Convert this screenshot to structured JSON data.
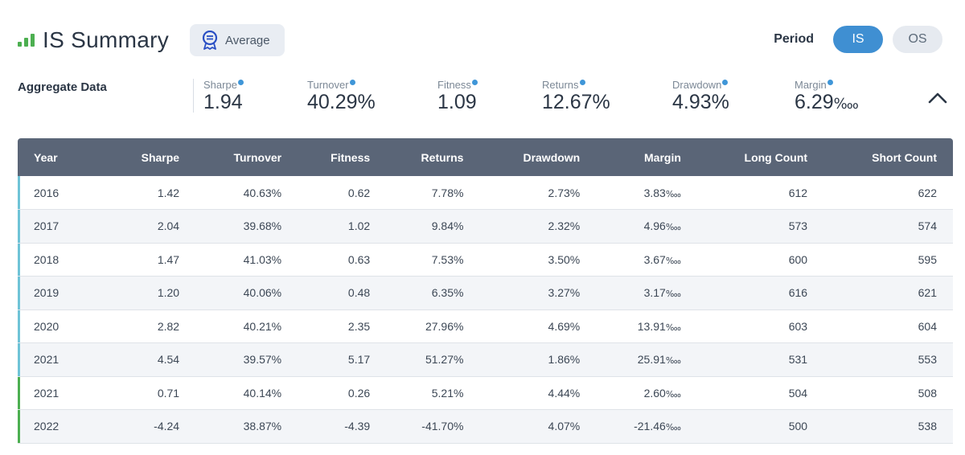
{
  "header": {
    "title": "IS Summary",
    "badge_label": "Average",
    "period_label": "Period",
    "period_options": [
      "IS",
      "OS"
    ],
    "period_selected": "IS"
  },
  "aggregate": {
    "label": "Aggregate Data",
    "stats": [
      {
        "label": "Sharpe",
        "value": "1.94"
      },
      {
        "label": "Turnover",
        "value": "40.29%"
      },
      {
        "label": "Fitness",
        "value": "1.09"
      },
      {
        "label": "Returns",
        "value": "12.67%"
      },
      {
        "label": "Drawdown",
        "value": "4.93%"
      },
      {
        "label": "Margin",
        "value": "6.29",
        "unit": "‱"
      }
    ]
  },
  "table": {
    "columns": [
      "Year",
      "Sharpe",
      "Turnover",
      "Fitness",
      "Returns",
      "Drawdown",
      "Margin",
      "Long Count",
      "Short Count"
    ],
    "rows": [
      {
        "year": "2016",
        "sharpe": "1.42",
        "turnover": "40.63%",
        "fitness": "0.62",
        "returns": "7.78%",
        "drawdown": "2.73%",
        "margin": "3.83",
        "long": "612",
        "short": "622",
        "kind": "is"
      },
      {
        "year": "2017",
        "sharpe": "2.04",
        "turnover": "39.68%",
        "fitness": "1.02",
        "returns": "9.84%",
        "drawdown": "2.32%",
        "margin": "4.96",
        "long": "573",
        "short": "574",
        "kind": "is"
      },
      {
        "year": "2018",
        "sharpe": "1.47",
        "turnover": "41.03%",
        "fitness": "0.63",
        "returns": "7.53%",
        "drawdown": "3.50%",
        "margin": "3.67",
        "long": "600",
        "short": "595",
        "kind": "is"
      },
      {
        "year": "2019",
        "sharpe": "1.20",
        "turnover": "40.06%",
        "fitness": "0.48",
        "returns": "6.35%",
        "drawdown": "3.27%",
        "margin": "3.17",
        "long": "616",
        "short": "621",
        "kind": "is"
      },
      {
        "year": "2020",
        "sharpe": "2.82",
        "turnover": "40.21%",
        "fitness": "2.35",
        "returns": "27.96%",
        "drawdown": "4.69%",
        "margin": "13.91",
        "long": "603",
        "short": "604",
        "kind": "is"
      },
      {
        "year": "2021",
        "sharpe": "4.54",
        "turnover": "39.57%",
        "fitness": "5.17",
        "returns": "51.27%",
        "drawdown": "1.86%",
        "margin": "25.91",
        "long": "531",
        "short": "553",
        "kind": "is"
      },
      {
        "year": "2021",
        "sharpe": "0.71",
        "turnover": "40.14%",
        "fitness": "0.26",
        "returns": "5.21%",
        "drawdown": "4.44%",
        "margin": "2.60",
        "long": "504",
        "short": "508",
        "kind": "os"
      },
      {
        "year": "2022",
        "sharpe": "-4.24",
        "turnover": "38.87%",
        "fitness": "-4.39",
        "returns": "-41.70%",
        "drawdown": "4.07%",
        "margin": "-21.46",
        "long": "500",
        "short": "538",
        "kind": "os"
      }
    ],
    "margin_unit": "‱"
  },
  "colors": {
    "accent": "#3f8fd2",
    "header_bg": "#5a6577",
    "is_marker": "#6fc3d7",
    "os_marker": "#4caf50",
    "chart_icon": "#4caf50"
  },
  "icons": {
    "title": "bar-chart-icon",
    "badge": "ribbon-badge-icon",
    "collapse": "chevron-up-icon",
    "info_dot": "info-dot-icon"
  }
}
